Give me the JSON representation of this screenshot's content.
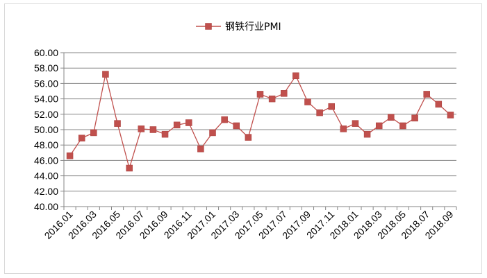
{
  "chart_data": {
    "type": "line",
    "legend": "top-center",
    "grid": true,
    "series": [
      {
        "name": "钢铁行业PMI",
        "color": "#c0504d",
        "marker": "square",
        "values": [
          46.6,
          48.9,
          49.6,
          57.2,
          50.8,
          45.0,
          50.1,
          50.0,
          49.4,
          50.6,
          50.9,
          47.5,
          49.6,
          51.3,
          50.5,
          49.0,
          54.6,
          54.0,
          54.7,
          57.0,
          53.6,
          52.2,
          53.0,
          50.1,
          50.8,
          49.4,
          50.5,
          51.6,
          50.5,
          51.5,
          54.6,
          53.3,
          51.9
        ]
      }
    ],
    "x": [
      "2016.01",
      "2016.02",
      "2016.03",
      "2016.04",
      "2016.05",
      "2016.06",
      "2016.07",
      "2016.08",
      "2016.09",
      "2016.10",
      "2016.11",
      "2016.12",
      "2017.01",
      "2017.02",
      "2017.03",
      "2017.04",
      "2017.05",
      "2017.06",
      "2017.07",
      "2017.08",
      "2017.09",
      "2017.10",
      "2017.11",
      "2017.12",
      "2018.01",
      "2018.02",
      "2018.03",
      "2018.04",
      "2018.05",
      "2018.06",
      "2018.07",
      "2018.08",
      "2018.09"
    ],
    "x_tick_labels": [
      "2016.01",
      "2016.03",
      "2016.05",
      "2016.07",
      "2016.09",
      "2016.11",
      "2017.01",
      "2017.03",
      "2017.05",
      "2017.07",
      "2017.09",
      "2017.11",
      "2018.01",
      "2018.03",
      "2018.05",
      "2018.07",
      "2018.09"
    ],
    "y_tick_labels": [
      "40.00",
      "42.00",
      "44.00",
      "46.00",
      "48.00",
      "50.00",
      "52.00",
      "54.00",
      "56.00",
      "58.00",
      "60.00"
    ],
    "ylim": [
      40,
      60
    ],
    "ystep": 2
  }
}
